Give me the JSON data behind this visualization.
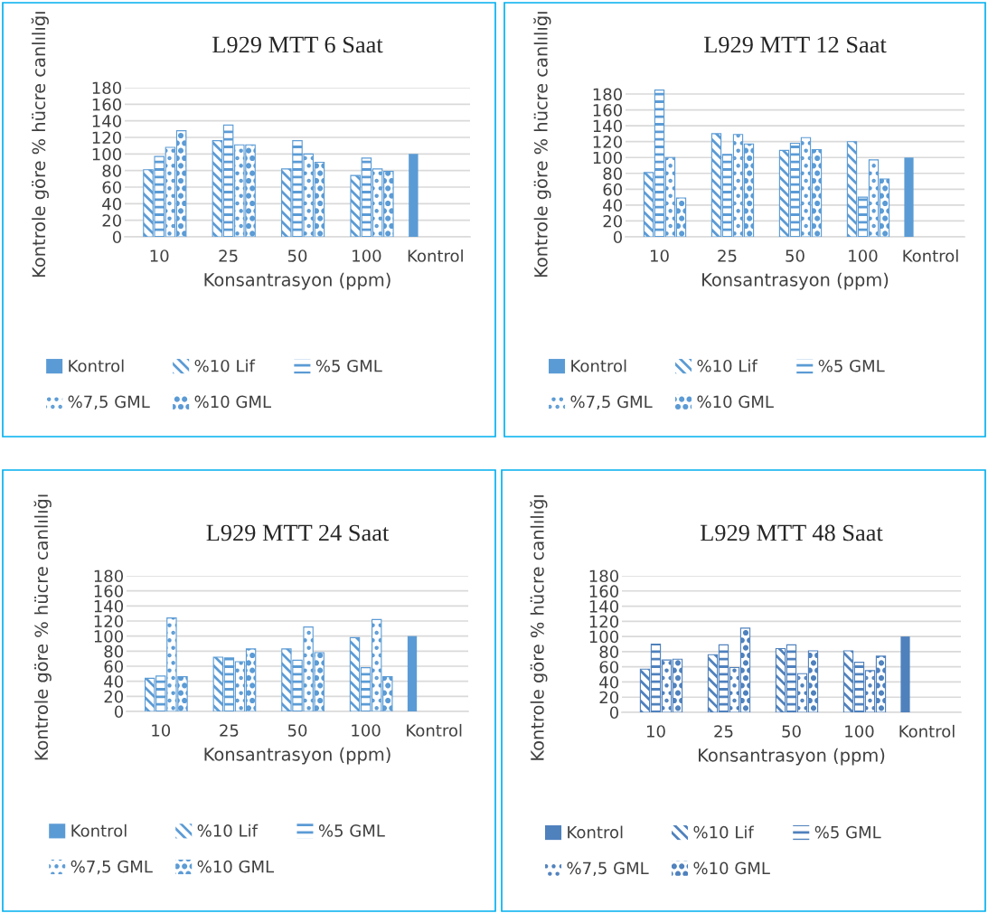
{
  "chart_data": [
    {
      "type": "bar",
      "title": "L929 MTT 6 Saat",
      "xlabel": "Konsantrasyon (ppm)",
      "ylabel": "Kontrole göre % hücre canlılığı",
      "categories": [
        "10",
        "25",
        "50",
        "100",
        "Kontrol"
      ],
      "ylim": [
        0,
        180
      ],
      "yticks": [
        0,
        20,
        40,
        60,
        80,
        100,
        120,
        140,
        160,
        180
      ],
      "grid": "y",
      "legend": "bottom",
      "series": [
        {
          "name": "Kontrol",
          "color": "#5b9bd5",
          "values": [
            null,
            null,
            null,
            null,
            100
          ]
        },
        {
          "name": "%10 Lif",
          "color": "#5b9bd5",
          "values": [
            81,
            116,
            82,
            74,
            null
          ]
        },
        {
          "name": "%5 GML",
          "color": "#5b9bd5",
          "values": [
            97,
            135,
            116,
            95,
            null
          ]
        },
        {
          "name": "%7,5 GML",
          "color": "#5b9bd5",
          "values": [
            108,
            111,
            100,
            82,
            null
          ]
        },
        {
          "name": "%10 GML",
          "color": "#5b9bd5",
          "values": [
            128,
            111,
            90,
            79,
            null
          ]
        }
      ]
    },
    {
      "type": "bar",
      "title": "L929 MTT 12 Saat",
      "xlabel": "Konsantrasyon (ppm)",
      "ylabel": "Kontrole göre % hücre canlılığı",
      "categories": [
        "10",
        "25",
        "50",
        "100",
        "Kontrol"
      ],
      "ylim": [
        0,
        188
      ],
      "yticks": [
        0,
        20,
        40,
        60,
        80,
        100,
        120,
        140,
        160,
        180
      ],
      "grid": "y",
      "legend": "bottom",
      "series": [
        {
          "name": "Kontrol",
          "color": "#5b9bd5",
          "values": [
            null,
            null,
            null,
            null,
            100
          ]
        },
        {
          "name": "%10 Lif",
          "color": "#5b9bd5",
          "values": [
            81,
            130,
            109,
            120,
            null
          ]
        },
        {
          "name": "%5 GML",
          "color": "#5b9bd5",
          "values": [
            185,
            104,
            118,
            50,
            null
          ]
        },
        {
          "name": "%7,5 GML",
          "color": "#5b9bd5",
          "values": [
            100,
            129,
            125,
            97,
            null
          ]
        },
        {
          "name": "%10 GML",
          "color": "#5b9bd5",
          "values": [
            49,
            117,
            110,
            73,
            null
          ]
        }
      ]
    },
    {
      "type": "bar",
      "title": "L929 MTT 24 Saat",
      "xlabel": "Konsantrasyon (ppm)",
      "ylabel": "Kontrole göre % hücre canlılığı",
      "categories": [
        "10",
        "25",
        "50",
        "100",
        "Kontrol"
      ],
      "ylim": [
        0,
        180
      ],
      "yticks": [
        0,
        20,
        40,
        60,
        80,
        100,
        120,
        140,
        160,
        180
      ],
      "grid": "y",
      "legend": "bottom",
      "series": [
        {
          "name": "Kontrol",
          "color": "#5b9bd5",
          "values": [
            null,
            null,
            null,
            null,
            100
          ]
        },
        {
          "name": "%10 Lif",
          "color": "#5b9bd5",
          "values": [
            44,
            72,
            83,
            98,
            null
          ]
        },
        {
          "name": "%5 GML",
          "color": "#5b9bd5",
          "values": [
            47,
            71,
            68,
            58,
            null
          ]
        },
        {
          "name": "%7,5 GML",
          "color": "#5b9bd5",
          "values": [
            124,
            66,
            112,
            122,
            null
          ]
        },
        {
          "name": "%10 GML",
          "color": "#5b9bd5",
          "values": [
            46,
            83,
            78,
            46,
            null
          ]
        }
      ]
    },
    {
      "type": "bar",
      "title": "L929 MTT 48 Saat",
      "xlabel": "Konsantrasyon (ppm)",
      "ylabel": "Kontrole göre % hücre canlılığı",
      "categories": [
        "10",
        "25",
        "50",
        "100",
        "Kontrol"
      ],
      "ylim": [
        0,
        180
      ],
      "yticks": [
        0,
        20,
        40,
        60,
        80,
        100,
        120,
        140,
        160,
        180
      ],
      "grid": "y",
      "legend": "bottom",
      "series": [
        {
          "name": "Kontrol",
          "color": "#4f81bd",
          "values": [
            null,
            null,
            null,
            null,
            100
          ]
        },
        {
          "name": "%10 Lif",
          "color": "#4f81bd",
          "values": [
            57,
            76,
            84,
            81,
            null
          ]
        },
        {
          "name": "%5 GML",
          "color": "#4f81bd",
          "values": [
            90,
            89,
            89,
            66,
            null
          ]
        },
        {
          "name": "%7,5 GML",
          "color": "#4f81bd",
          "values": [
            69,
            59,
            51,
            55,
            null
          ]
        },
        {
          "name": "%10 GML",
          "color": "#4f81bd",
          "values": [
            70,
            111,
            81,
            74,
            null
          ]
        }
      ]
    }
  ]
}
